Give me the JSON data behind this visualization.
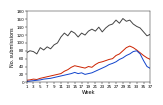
{
  "weeks": [
    1,
    2,
    3,
    4,
    5,
    6,
    7,
    8,
    9,
    10,
    11,
    12,
    13,
    14,
    15,
    16,
    17,
    18,
    19,
    20,
    21,
    22,
    23,
    24,
    25,
    26,
    27,
    28,
    29,
    30,
    31,
    32,
    33,
    34,
    35,
    36,
    37
  ],
  "survey": [
    75,
    80,
    78,
    72,
    88,
    82,
    90,
    85,
    95,
    100,
    115,
    125,
    118,
    130,
    125,
    115,
    125,
    120,
    130,
    135,
    130,
    140,
    128,
    138,
    145,
    148,
    158,
    150,
    162,
    155,
    158,
    148,
    142,
    138,
    128,
    118,
    122
  ],
  "gps": [
    5,
    6,
    8,
    7,
    10,
    12,
    14,
    16,
    18,
    20,
    22,
    28,
    32,
    38,
    42,
    40,
    38,
    36,
    40,
    38,
    45,
    50,
    52,
    55,
    58,
    60,
    68,
    72,
    80,
    88,
    92,
    88,
    82,
    75,
    68,
    62,
    58
  ],
  "linked": [
    2,
    3,
    4,
    5,
    6,
    8,
    9,
    10,
    12,
    14,
    16,
    18,
    20,
    22,
    25,
    22,
    24,
    20,
    22,
    24,
    28,
    32,
    36,
    40,
    45,
    48,
    52,
    58,
    62,
    68,
    72,
    78,
    80,
    72,
    55,
    40,
    35
  ],
  "survey_color": "#444444",
  "gps_color": "#cc2200",
  "linked_color": "#1144cc",
  "xlabel": "Week",
  "ylabel": "No. submissions",
  "ylim": [
    0,
    180
  ],
  "xlim": [
    1,
    37
  ],
  "yticks": [
    0,
    20,
    40,
    60,
    80,
    100,
    120,
    140,
    160,
    180
  ],
  "xticks": [
    1,
    3,
    5,
    7,
    9,
    11,
    13,
    15,
    17,
    19,
    21,
    23,
    25,
    27,
    29,
    31,
    33,
    35,
    37
  ],
  "bg_color": "#ffffff",
  "lw_survey": 0.7,
  "lw_gps": 0.7,
  "lw_linked": 0.7
}
